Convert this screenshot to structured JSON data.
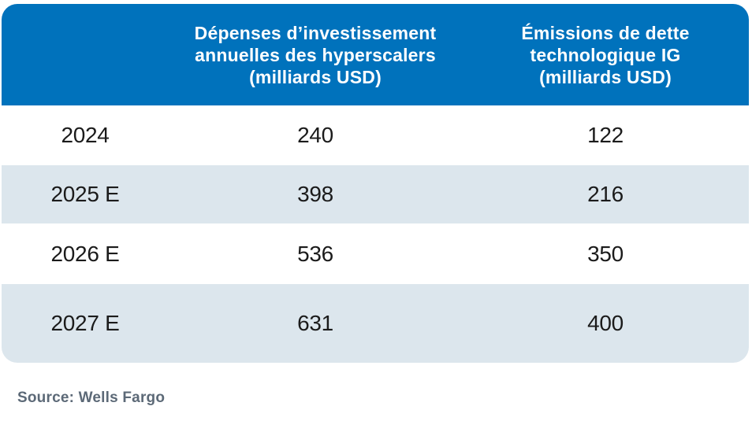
{
  "table": {
    "header": {
      "year_label": "",
      "capex_lines": [
        "Dépenses d’investissement",
        "annuelles des hyperscalers",
        "(milliards USD)"
      ],
      "debt_lines": [
        "Émissions de dette",
        "technologique IG",
        "(milliards USD)"
      ]
    },
    "rows": [
      {
        "year": "2024",
        "capex": "240",
        "debt": "122"
      },
      {
        "year": "2025 E",
        "capex": "398",
        "debt": "216"
      },
      {
        "year": "2026 E",
        "capex": "536",
        "debt": "350"
      },
      {
        "year": "2027 E",
        "capex": "631",
        "debt": "400"
      }
    ]
  },
  "source": "Source: Wells Fargo",
  "colors": {
    "header_bg": "#0072BC",
    "header_text": "#FFFFFF",
    "row_bg": "#FFFFFF",
    "row_alt_bg": "#DCE6ED",
    "body_text": "#1B1B1B",
    "source_text": "#5C6977"
  },
  "chart_data": {
    "type": "table",
    "columns": [
      "",
      "Dépenses d’investissement annuelles des hyperscalers (milliards USD)",
      "Émissions de dette technologique IG (milliards USD)"
    ],
    "rows": [
      [
        "2024",
        240,
        122
      ],
      [
        "2025 E",
        398,
        216
      ],
      [
        "2026 E",
        536,
        350
      ],
      [
        "2027 E",
        631,
        400
      ]
    ],
    "source": "Source: Wells Fargo"
  }
}
